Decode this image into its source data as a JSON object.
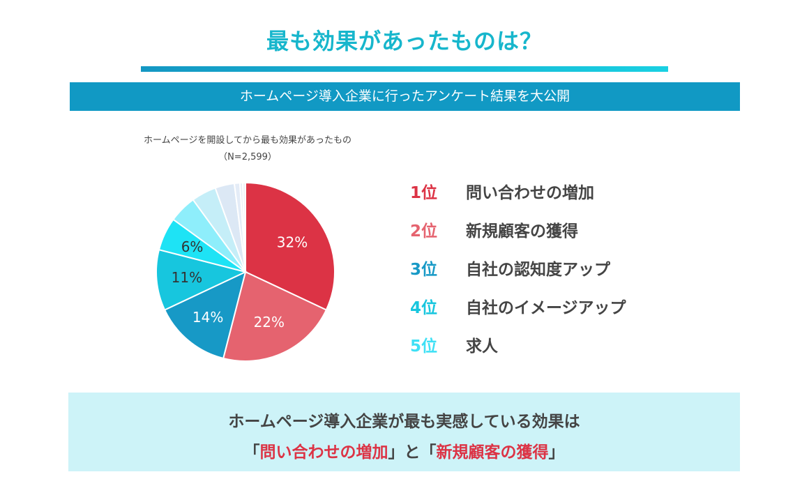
{
  "title": "最も効果があったものは？",
  "banner": "ホームページ導入企業に行ったアンケート結果を大公開",
  "chart_data": {
    "type": "pie",
    "title": "ホームページを開設してから最も効果があったもの",
    "subtitle": "（N=2,599）",
    "slices": [
      {
        "value": 32,
        "label": "32%",
        "color": "#dc3345"
      },
      {
        "value": 22,
        "label": "22%",
        "color": "#e5636f"
      },
      {
        "value": 14,
        "label": "14%",
        "color": "#1799c6"
      },
      {
        "value": 11,
        "label": "11%",
        "color": "#17c6de"
      },
      {
        "value": 6,
        "label": "6%",
        "color": "#1ee3f5"
      },
      {
        "value": 5,
        "label": "",
        "color": "#8eeefb"
      },
      {
        "value": 4.5,
        "label": "",
        "color": "#c5eef8"
      },
      {
        "value": 3.5,
        "label": "",
        "color": "#dce8f5"
      },
      {
        "value": 1,
        "label": "",
        "color": "#e4ecf7"
      },
      {
        "value": 0.5,
        "label": "",
        "color": "#e8eef7"
      },
      {
        "value": 0.5,
        "label": "",
        "color": "#edf2f8"
      }
    ]
  },
  "ranking": [
    {
      "rank": "1位",
      "label": "問い合わせの増加",
      "color": "#dc3345"
    },
    {
      "rank": "2位",
      "label": "新規顧客の獲得",
      "color": "#e5636f"
    },
    {
      "rank": "3位",
      "label": "自社の認知度アップ",
      "color": "#1799c6"
    },
    {
      "rank": "4位",
      "label": "自社のイメージアップ",
      "color": "#17c6de"
    },
    {
      "rank": "5位",
      "label": "求人",
      "color": "#3ee0f5"
    }
  ],
  "summary": {
    "line1": "ホームページ導入企業が最も実感している効果は",
    "open1": "「",
    "hl1": "問い合わせの増加",
    "close1": "」と「",
    "hl2": "新規顧客の獲得",
    "close2": "」"
  }
}
